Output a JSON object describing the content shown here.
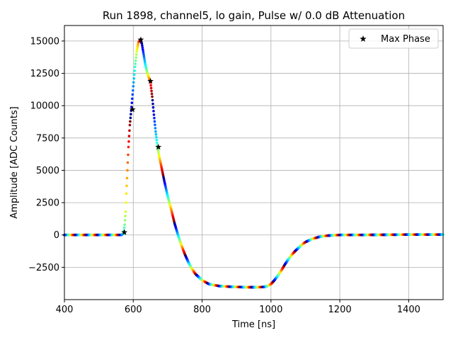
{
  "chart_data": {
    "type": "scatter",
    "title": "Run 1898, channel5, lo gain, Pulse w/ 0.0 dB Attenuation",
    "xlabel": "Time [ns]",
    "ylabel": "Amplitude [ADC Counts]",
    "xlim": [
      400,
      1500
    ],
    "ylim": [
      -5000,
      16200
    ],
    "xticks": [
      400,
      600,
      800,
      1000,
      1200,
      1400
    ],
    "yticks": [
      -2500,
      0,
      2500,
      5000,
      7500,
      10000,
      12500,
      15000
    ],
    "grid": true,
    "legend_position": "top-right",
    "colormap": "jet",
    "series": [
      {
        "name": "",
        "kind": "colored-points",
        "x": [
          400,
          450,
          500,
          550,
          565,
          572,
          575,
          578,
          580,
          583,
          586,
          590,
          595,
          600,
          605,
          610,
          615,
          620,
          625,
          630,
          635,
          640,
          645,
          650,
          655,
          660,
          665,
          670,
          675,
          680,
          690,
          700,
          710,
          720,
          730,
          740,
          750,
          760,
          770,
          780,
          800,
          820,
          850,
          880,
          900,
          930,
          960,
          980,
          990,
          1000,
          1010,
          1020,
          1030,
          1040,
          1050,
          1060,
          1070,
          1080,
          1090,
          1100,
          1120,
          1140,
          1160,
          1180,
          1200,
          1250,
          1300,
          1350,
          1400,
          1450,
          1500
        ],
        "y": [
          0,
          0,
          0,
          0,
          0,
          100,
          800,
          1800,
          3200,
          5000,
          6800,
          8500,
          9900,
          11500,
          13000,
          14200,
          14900,
          15100,
          14800,
          14000,
          13200,
          12600,
          12200,
          11800,
          10700,
          9300,
          8000,
          6900,
          6100,
          5500,
          4200,
          3000,
          2000,
          900,
          0,
          -800,
          -1500,
          -2100,
          -2600,
          -3000,
          -3500,
          -3800,
          -3950,
          -4000,
          -4020,
          -4040,
          -4040,
          -4020,
          -3950,
          -3800,
          -3500,
          -3150,
          -2750,
          -2300,
          -1900,
          -1550,
          -1250,
          -1000,
          -750,
          -550,
          -300,
          -150,
          -60,
          -20,
          0,
          0,
          10,
          20,
          30,
          30,
          30
        ]
      },
      {
        "name": "Max Phase",
        "kind": "marker",
        "marker": "star",
        "color": "#000000",
        "x": [
          574,
          598,
          622,
          650,
          673
        ],
        "y": [
          200,
          9700,
          15100,
          11900,
          6800
        ]
      }
    ]
  }
}
